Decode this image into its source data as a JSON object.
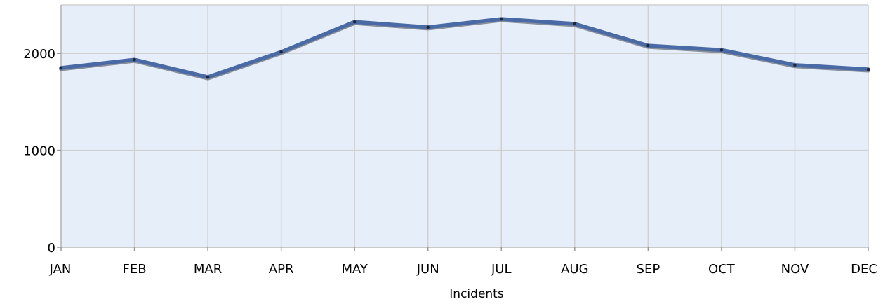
{
  "chart_data": {
    "type": "line",
    "title": "",
    "xlabel": "Incidents",
    "ylabel": "",
    "categories": [
      "JAN",
      "FEB",
      "MAR",
      "APR",
      "MAY",
      "JUN",
      "JUL",
      "AUG",
      "SEP",
      "OCT",
      "NOV",
      "DEC"
    ],
    "series": [
      {
        "values": [
          1850,
          1935,
          1755,
          2015,
          2325,
          2270,
          2355,
          2305,
          2080,
          2035,
          1880,
          1835
        ],
        "color": "#4a6aa5"
      }
    ],
    "ylim": [
      0,
      2500
    ],
    "yticks": [
      0,
      1000,
      2000
    ],
    "ytick_labels": [
      "0",
      "1000",
      "2000"
    ],
    "grid": true,
    "legend": "none",
    "colors": {
      "plot_background": "#e6eefa",
      "grid": "#d0d0d0",
      "line": "#4a6aa5"
    }
  }
}
